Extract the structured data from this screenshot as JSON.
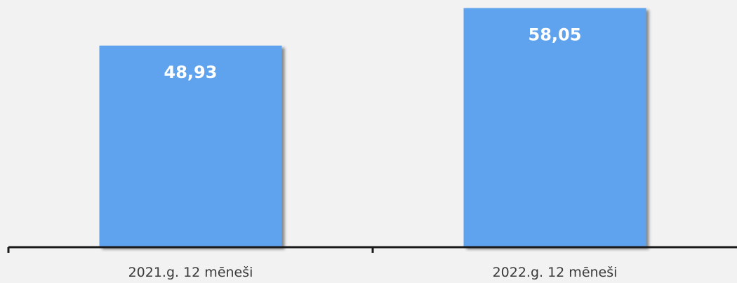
{
  "chart_data": {
    "type": "bar",
    "categories": [
      "2021.g. 12 mēneši",
      "2022.g. 12 mēneši"
    ],
    "series": [
      {
        "values": [
          48.93,
          58.05
        ],
        "labels": [
          "48,93",
          "58,05"
        ]
      }
    ],
    "title": "",
    "xlabel": "",
    "ylabel": "",
    "ylim": [
      0,
      60
    ],
    "grid": false,
    "legend": "none",
    "bar_color": "#5ea3ef",
    "bar_shadow_color": "#a8a8a8",
    "label_color": "#ffffff",
    "axis_color": "#1a1a1a",
    "text_color": "#3a3a3a",
    "background": "#f2f2f2"
  }
}
